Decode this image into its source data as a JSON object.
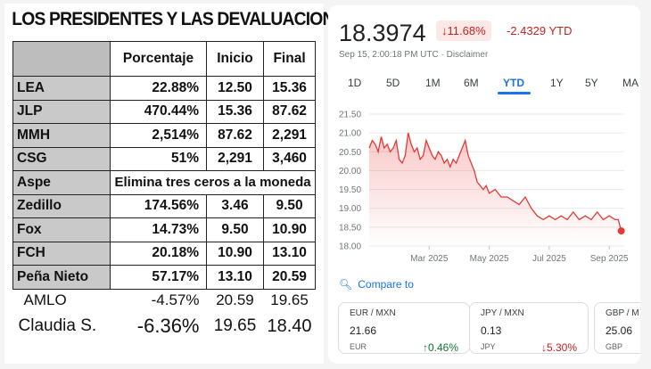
{
  "left": {
    "title": "LOS PRESIDENTES Y LAS DEVALUACIONES",
    "headers": [
      "Porcentaje",
      "Inicio",
      "Final"
    ],
    "rows": [
      {
        "name": "LEA",
        "pct": "22.88%",
        "start": "12.50",
        "end": "15.36"
      },
      {
        "name": "JLP",
        "pct": "470.44%",
        "start": "15.36",
        "end": "87.62"
      },
      {
        "name": "MMH",
        "pct": "2,514%",
        "start": "87.62",
        "end": "2,291"
      },
      {
        "name": "CSG",
        "pct": "51%",
        "start": "2,291",
        "end": "3,460"
      },
      {
        "name": "Aspe",
        "note": "Elimina tres ceros a la moneda"
      },
      {
        "name": "Zedillo",
        "pct": "174.56%",
        "start": "3.46",
        "end": "9.50"
      },
      {
        "name": "Fox",
        "pct": "14.73%",
        "start": "9.50",
        "end": "10.90"
      },
      {
        "name": "FCH",
        "pct": "20.18%",
        "start": "10.90",
        "end": "13.10"
      },
      {
        "name": "Peña Nieto",
        "pct": "57.17%",
        "start": "13.10",
        "end": "20.59"
      },
      {
        "name": "AMLO",
        "pct": "-4.57%",
        "start": "20.59",
        "end": "19.65"
      },
      {
        "name": "Claudia S.",
        "pct": "-6.36%",
        "start": "19.65",
        "end": "18.40"
      }
    ]
  },
  "right": {
    "price": "18.3974",
    "change_pct": "↓11.68%",
    "change_abs": "-2.4329 YTD",
    "timestamp": "Sep 15, 2:00:18 PM UTC · Disclaimer",
    "tabs": [
      "1D",
      "5D",
      "1M",
      "6M",
      "YTD",
      "1Y",
      "5Y",
      "MA"
    ],
    "active_tab": "YTD",
    "compare_label": "Compare to",
    "cards": [
      {
        "pair": "EUR / MXN",
        "value": "21.66",
        "code": "EUR",
        "change": "↑0.46%",
        "dir": "up"
      },
      {
        "pair": "JPY / MXN",
        "value": "0.13",
        "code": "JPY",
        "change": "↓5.30%",
        "dir": "down"
      },
      {
        "pair": "GBP / M",
        "value": "25.06",
        "code": "GBP",
        "change": "",
        "dir": ""
      }
    ],
    "colors": {
      "down": "#c5221f",
      "up": "#137333",
      "accent": "#1a73e8",
      "line": "#e53935"
    }
  },
  "chart_data": {
    "type": "line",
    "title": "",
    "yticks": [
      "21.50",
      "21.00",
      "20.50",
      "20.00",
      "19.50",
      "19.00",
      "18.50",
      "18.00"
    ],
    "ylim": [
      18.0,
      21.5
    ],
    "xticks": [
      "Mar 2025",
      "May 2025",
      "Jul 2025",
      "Sep 2025"
    ],
    "xtick_pos": [
      2.0,
      4.0,
      6.0,
      8.0
    ],
    "xlim": [
      0,
      8.5
    ],
    "grid": true,
    "series": [
      {
        "x": [
          0,
          0.1,
          0.2,
          0.3,
          0.4,
          0.5,
          0.6,
          0.7,
          0.8,
          0.9,
          1.0,
          1.1,
          1.2,
          1.3,
          1.4,
          1.5,
          1.6,
          1.7,
          1.8,
          1.9,
          2.0,
          2.1,
          2.2,
          2.3,
          2.4,
          2.5,
          2.6,
          2.7,
          2.8,
          2.9,
          3.0,
          3.1,
          3.2,
          3.3,
          3.4,
          3.5,
          3.6,
          3.7,
          3.8,
          3.9,
          4.0,
          4.2,
          4.4,
          4.6,
          4.8,
          5.0,
          5.2,
          5.4,
          5.6,
          5.8,
          6.0,
          6.2,
          6.4,
          6.6,
          6.8,
          7.0,
          7.2,
          7.4,
          7.6,
          7.8,
          8.0,
          8.2,
          8.3,
          8.4
        ],
        "y": [
          20.6,
          20.8,
          20.7,
          20.5,
          20.9,
          20.6,
          20.7,
          20.5,
          20.6,
          20.8,
          20.3,
          20.2,
          20.4,
          21.0,
          20.7,
          20.5,
          20.6,
          20.3,
          20.4,
          20.8,
          20.6,
          20.4,
          20.3,
          20.5,
          20.4,
          20.2,
          20.3,
          20.1,
          20.3,
          20.2,
          20.4,
          20.6,
          20.8,
          20.4,
          20.2,
          20.0,
          19.7,
          19.6,
          19.5,
          19.6,
          19.4,
          19.5,
          19.3,
          19.3,
          19.2,
          19.1,
          19.3,
          19.0,
          18.8,
          18.7,
          18.8,
          18.7,
          18.8,
          18.7,
          18.9,
          18.7,
          18.8,
          18.7,
          18.9,
          18.7,
          18.8,
          18.7,
          18.7,
          18.4
        ]
      }
    ]
  }
}
